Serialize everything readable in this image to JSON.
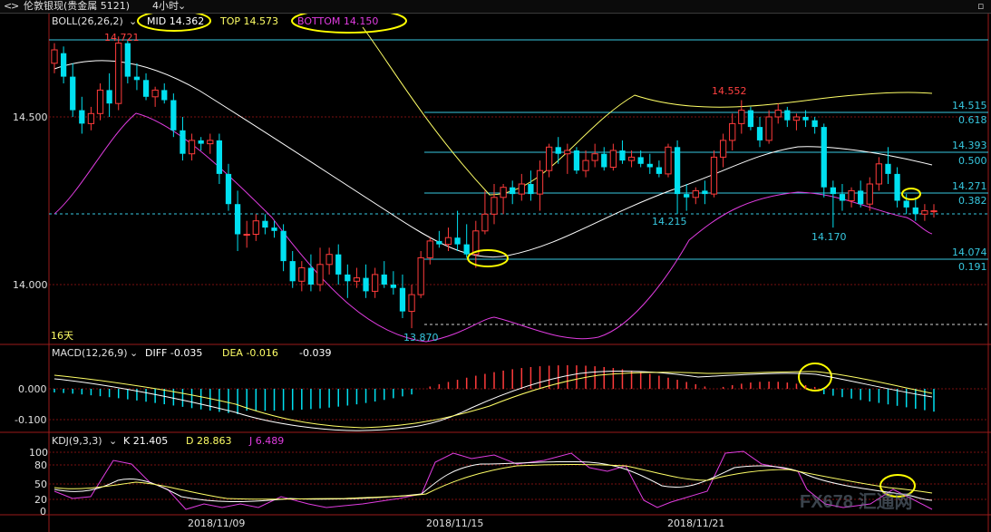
{
  "window": {
    "nav_back": "<",
    "nav_fwd": ">",
    "title": "伦敦银现(贵金属 5121)",
    "period": "4小时",
    "period_arrow": "⌄"
  },
  "colors": {
    "background": "#000000",
    "up": "#ff3b3b",
    "down": "#00e0f0",
    "mid_line": "#ffffff",
    "top_line": "#ffff66",
    "bottom_line": "#e03ce0",
    "fib_line": "#37c8e0",
    "grid": "#7a1010",
    "highlight": "#ffff00"
  },
  "boll": {
    "label": "BOLL(26,26,2)",
    "mid_label": "MID 14.362",
    "top_label": "TOP 14.573",
    "bottom_label": "BOTTOM 14.150"
  },
  "price_axis": {
    "labels": [
      "14.500",
      "14.000"
    ]
  },
  "annotations": {
    "high1": "14.721",
    "high2": "14.552",
    "low1": "13.870",
    "low2": "14.215",
    "low3": "14.170",
    "span": "16天"
  },
  "fib_levels": [
    {
      "price": "14.515",
      "ratio": "0.618"
    },
    {
      "price": "14.393",
      "ratio": "0.500"
    },
    {
      "price": "14.271",
      "ratio": "0.382"
    },
    {
      "price": "14.074",
      "ratio": "0.191"
    }
  ],
  "macd": {
    "label": "MACD(12,26,9)",
    "diff_label": "DIFF -0.035",
    "dea_label": "DEA -0.016",
    "macd_value": "-0.039",
    "axis_labels": [
      "0.000",
      "-0.100"
    ]
  },
  "kdj": {
    "label": "KDJ(9,3,3)",
    "k_label": "K 21.405",
    "d_label": "D 28.863",
    "j_label": "J 6.489",
    "axis_labels": [
      "100",
      "80",
      "50",
      "20",
      "0"
    ]
  },
  "date_axis": [
    "2018/11/09",
    "2018/11/15",
    "2018/11/21"
  ],
  "watermark": "FX678 汇通网",
  "candles": [
    {
      "o": 14.66,
      "h": 14.72,
      "l": 14.63,
      "c": 14.7
    },
    {
      "o": 14.69,
      "h": 14.71,
      "l": 14.6,
      "c": 14.62
    },
    {
      "o": 14.62,
      "h": 14.66,
      "l": 14.5,
      "c": 14.52
    },
    {
      "o": 14.52,
      "h": 14.56,
      "l": 14.45,
      "c": 14.48
    },
    {
      "o": 14.48,
      "h": 14.53,
      "l": 14.46,
      "c": 14.51
    },
    {
      "o": 14.51,
      "h": 14.6,
      "l": 14.49,
      "c": 14.58
    },
    {
      "o": 14.58,
      "h": 14.63,
      "l": 14.5,
      "c": 14.54
    },
    {
      "o": 14.54,
      "h": 14.74,
      "l": 14.52,
      "c": 14.72
    },
    {
      "o": 14.72,
      "h": 14.73,
      "l": 14.6,
      "c": 14.62
    },
    {
      "o": 14.62,
      "h": 14.66,
      "l": 14.58,
      "c": 14.61
    },
    {
      "o": 14.61,
      "h": 14.63,
      "l": 14.55,
      "c": 14.56
    },
    {
      "o": 14.56,
      "h": 14.59,
      "l": 14.53,
      "c": 14.58
    },
    {
      "o": 14.58,
      "h": 14.6,
      "l": 14.54,
      "c": 14.55
    },
    {
      "o": 14.55,
      "h": 14.57,
      "l": 14.44,
      "c": 14.46
    },
    {
      "o": 14.46,
      "h": 14.5,
      "l": 14.37,
      "c": 14.39
    },
    {
      "o": 14.39,
      "h": 14.45,
      "l": 14.37,
      "c": 14.43
    },
    {
      "o": 14.43,
      "h": 14.44,
      "l": 14.4,
      "c": 14.42
    },
    {
      "o": 14.42,
      "h": 14.45,
      "l": 14.39,
      "c": 14.43
    },
    {
      "o": 14.43,
      "h": 14.45,
      "l": 14.3,
      "c": 14.33
    },
    {
      "o": 14.33,
      "h": 14.36,
      "l": 14.22,
      "c": 14.24
    },
    {
      "o": 14.24,
      "h": 14.28,
      "l": 14.1,
      "c": 14.15
    },
    {
      "o": 14.15,
      "h": 14.19,
      "l": 14.11,
      "c": 14.15
    },
    {
      "o": 14.15,
      "h": 14.21,
      "l": 14.13,
      "c": 14.19
    },
    {
      "o": 14.19,
      "h": 14.21,
      "l": 14.15,
      "c": 14.17
    },
    {
      "o": 14.17,
      "h": 14.19,
      "l": 14.14,
      "c": 14.16
    },
    {
      "o": 14.16,
      "h": 14.18,
      "l": 14.04,
      "c": 14.07
    },
    {
      "o": 14.07,
      "h": 14.1,
      "l": 13.99,
      "c": 14.01
    },
    {
      "o": 14.01,
      "h": 14.07,
      "l": 13.98,
      "c": 14.05
    },
    {
      "o": 14.05,
      "h": 14.09,
      "l": 13.98,
      "c": 14.0
    },
    {
      "o": 14.0,
      "h": 14.11,
      "l": 13.98,
      "c": 14.06
    },
    {
      "o": 14.06,
      "h": 14.11,
      "l": 14.03,
      "c": 14.09
    },
    {
      "o": 14.09,
      "h": 14.12,
      "l": 14.0,
      "c": 14.03
    },
    {
      "o": 14.03,
      "h": 14.06,
      "l": 13.96,
      "c": 14.01
    },
    {
      "o": 14.01,
      "h": 14.05,
      "l": 13.99,
      "c": 14.02
    },
    {
      "o": 14.02,
      "h": 14.06,
      "l": 13.96,
      "c": 13.98
    },
    {
      "o": 13.98,
      "h": 14.05,
      "l": 13.96,
      "c": 14.03
    },
    {
      "o": 14.03,
      "h": 14.07,
      "l": 13.99,
      "c": 14.0
    },
    {
      "o": 14.0,
      "h": 14.04,
      "l": 13.97,
      "c": 13.99
    },
    {
      "o": 13.99,
      "h": 14.03,
      "l": 13.9,
      "c": 13.92
    },
    {
      "o": 13.92,
      "h": 14.0,
      "l": 13.87,
      "c": 13.97
    },
    {
      "o": 13.97,
      "h": 14.1,
      "l": 13.96,
      "c": 14.08
    },
    {
      "o": 14.08,
      "h": 14.14,
      "l": 14.06,
      "c": 14.13
    },
    {
      "o": 14.13,
      "h": 14.16,
      "l": 14.11,
      "c": 14.12
    },
    {
      "o": 14.12,
      "h": 14.17,
      "l": 14.1,
      "c": 14.14
    },
    {
      "o": 14.14,
      "h": 14.22,
      "l": 14.1,
      "c": 14.12
    },
    {
      "o": 14.12,
      "h": 14.18,
      "l": 14.08,
      "c": 14.09
    },
    {
      "o": 14.09,
      "h": 14.19,
      "l": 14.05,
      "c": 14.16
    },
    {
      "o": 14.16,
      "h": 14.28,
      "l": 14.15,
      "c": 14.21
    },
    {
      "o": 14.21,
      "h": 14.3,
      "l": 14.18,
      "c": 14.26
    },
    {
      "o": 14.26,
      "h": 14.3,
      "l": 14.21,
      "c": 14.29
    },
    {
      "o": 14.29,
      "h": 14.31,
      "l": 14.24,
      "c": 14.27
    },
    {
      "o": 14.27,
      "h": 14.33,
      "l": 14.25,
      "c": 14.3
    },
    {
      "o": 14.3,
      "h": 14.34,
      "l": 14.25,
      "c": 14.27
    },
    {
      "o": 14.27,
      "h": 14.37,
      "l": 14.22,
      "c": 14.34
    },
    {
      "o": 14.34,
      "h": 14.42,
      "l": 14.32,
      "c": 14.41
    },
    {
      "o": 14.41,
      "h": 14.44,
      "l": 14.36,
      "c": 14.39
    },
    {
      "o": 14.39,
      "h": 14.42,
      "l": 14.33,
      "c": 14.4
    },
    {
      "o": 14.4,
      "h": 14.41,
      "l": 14.33,
      "c": 14.34
    },
    {
      "o": 14.34,
      "h": 14.4,
      "l": 14.32,
      "c": 14.37
    },
    {
      "o": 14.37,
      "h": 14.42,
      "l": 14.35,
      "c": 14.39
    },
    {
      "o": 14.39,
      "h": 14.41,
      "l": 14.34,
      "c": 14.35
    },
    {
      "o": 14.35,
      "h": 14.42,
      "l": 14.34,
      "c": 14.4
    },
    {
      "o": 14.4,
      "h": 14.43,
      "l": 14.36,
      "c": 14.37
    },
    {
      "o": 14.37,
      "h": 14.4,
      "l": 14.35,
      "c": 14.38
    },
    {
      "o": 14.38,
      "h": 14.4,
      "l": 14.35,
      "c": 14.36
    },
    {
      "o": 14.36,
      "h": 14.39,
      "l": 14.33,
      "c": 14.35
    },
    {
      "o": 14.35,
      "h": 14.37,
      "l": 14.32,
      "c": 14.33
    },
    {
      "o": 14.33,
      "h": 14.42,
      "l": 14.32,
      "c": 14.41
    },
    {
      "o": 14.41,
      "h": 14.43,
      "l": 14.21,
      "c": 14.27
    },
    {
      "o": 14.27,
      "h": 14.3,
      "l": 14.22,
      "c": 14.26
    },
    {
      "o": 14.26,
      "h": 14.29,
      "l": 14.24,
      "c": 14.28
    },
    {
      "o": 14.28,
      "h": 14.31,
      "l": 14.24,
      "c": 14.27
    },
    {
      "o": 14.27,
      "h": 14.4,
      "l": 14.26,
      "c": 14.38
    },
    {
      "o": 14.38,
      "h": 14.45,
      "l": 14.35,
      "c": 14.43
    },
    {
      "o": 14.43,
      "h": 14.51,
      "l": 14.4,
      "c": 14.48
    },
    {
      "o": 14.48,
      "h": 14.55,
      "l": 14.45,
      "c": 14.52
    },
    {
      "o": 14.52,
      "h": 14.53,
      "l": 14.46,
      "c": 14.47
    },
    {
      "o": 14.47,
      "h": 14.5,
      "l": 14.41,
      "c": 14.43
    },
    {
      "o": 14.43,
      "h": 14.52,
      "l": 14.42,
      "c": 14.5
    },
    {
      "o": 14.5,
      "h": 14.54,
      "l": 14.48,
      "c": 14.52
    },
    {
      "o": 14.52,
      "h": 14.53,
      "l": 14.47,
      "c": 14.49
    },
    {
      "o": 14.49,
      "h": 14.51,
      "l": 14.46,
      "c": 14.5
    },
    {
      "o": 14.5,
      "h": 14.52,
      "l": 14.47,
      "c": 14.49
    },
    {
      "o": 14.49,
      "h": 14.5,
      "l": 14.45,
      "c": 14.47
    },
    {
      "o": 14.47,
      "h": 14.48,
      "l": 14.26,
      "c": 14.29
    },
    {
      "o": 14.29,
      "h": 14.31,
      "l": 14.17,
      "c": 14.27
    },
    {
      "o": 14.27,
      "h": 14.3,
      "l": 14.22,
      "c": 14.25
    },
    {
      "o": 14.25,
      "h": 14.29,
      "l": 14.23,
      "c": 14.28
    },
    {
      "o": 14.28,
      "h": 14.31,
      "l": 14.23,
      "c": 14.24
    },
    {
      "o": 14.24,
      "h": 14.32,
      "l": 14.22,
      "c": 14.3
    },
    {
      "o": 14.3,
      "h": 14.38,
      "l": 14.28,
      "c": 14.36
    },
    {
      "o": 14.36,
      "h": 14.41,
      "l": 14.3,
      "c": 14.33
    },
    {
      "o": 14.33,
      "h": 14.35,
      "l": 14.23,
      "c": 14.25
    },
    {
      "o": 14.25,
      "h": 14.27,
      "l": 14.21,
      "c": 14.23
    },
    {
      "o": 14.23,
      "h": 14.26,
      "l": 14.19,
      "c": 14.21
    },
    {
      "o": 14.21,
      "h": 14.24,
      "l": 14.19,
      "c": 14.22
    },
    {
      "o": 14.22,
      "h": 14.24,
      "l": 14.2,
      "c": 14.22
    }
  ]
}
